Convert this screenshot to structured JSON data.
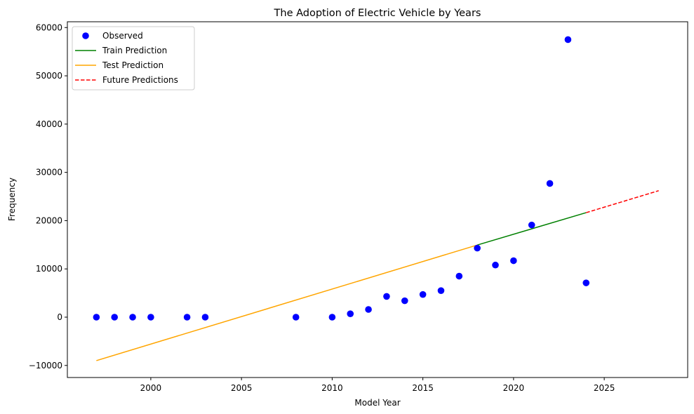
{
  "chart_data": {
    "type": "scatter",
    "title": "The Adoption of Electric Vehicle by Years",
    "xlabel": "Model Year",
    "ylabel": "Frequency",
    "xlim": [
      1995.4,
      2029.6
    ],
    "ylim": [
      -12500,
      61200
    ],
    "xticks": [
      2000,
      2005,
      2010,
      2015,
      2020,
      2025
    ],
    "yticks": [
      -10000,
      0,
      10000,
      20000,
      30000,
      40000,
      50000,
      60000
    ],
    "grid": false,
    "legend_position": "top-left",
    "series": [
      {
        "name": "Observed",
        "kind": "scatter",
        "color": "#0000ff",
        "points": [
          [
            1997,
            0
          ],
          [
            1998,
            0
          ],
          [
            1999,
            0
          ],
          [
            2000,
            0
          ],
          [
            2002,
            0
          ],
          [
            2003,
            0
          ],
          [
            2008,
            0
          ],
          [
            2010,
            0
          ],
          [
            2011,
            700
          ],
          [
            2012,
            1600
          ],
          [
            2013,
            4300
          ],
          [
            2014,
            3400
          ],
          [
            2015,
            4700
          ],
          [
            2016,
            5500
          ],
          [
            2017,
            8500
          ],
          [
            2018,
            14300
          ],
          [
            2019,
            10800
          ],
          [
            2020,
            11700
          ],
          [
            2021,
            19100
          ],
          [
            2022,
            27700
          ],
          [
            2023,
            57500
          ],
          [
            2024,
            7100
          ]
        ]
      },
      {
        "name": "Train Prediction",
        "kind": "line",
        "color": "#008000",
        "dash": "solid",
        "points": [
          [
            2018,
            14950
          ],
          [
            2024,
            21650
          ]
        ]
      },
      {
        "name": "Test Prediction",
        "kind": "line",
        "color": "#ffa500",
        "dash": "solid",
        "points": [
          [
            1997,
            -9000
          ],
          [
            2018,
            14950
          ]
        ]
      },
      {
        "name": "Future Predictions",
        "kind": "line",
        "color": "#ff0000",
        "dash": "dashed",
        "points": [
          [
            2024,
            21650
          ],
          [
            2028,
            26200
          ]
        ]
      }
    ]
  }
}
